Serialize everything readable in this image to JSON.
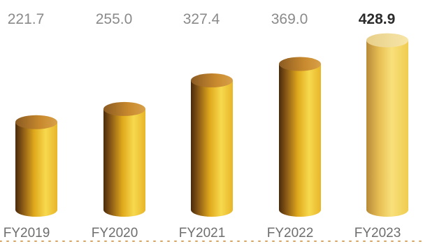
{
  "chart_data": {
    "type": "bar",
    "categories": [
      "FY2019",
      "FY2020",
      "FY2021",
      "FY2022",
      "FY2023"
    ],
    "values": [
      221.7,
      255.0,
      327.4,
      369.0,
      428.9
    ],
    "value_labels": [
      "221.7",
      "255.0",
      "327.4",
      "369.0",
      "428.9"
    ],
    "highlight_index": 4,
    "title": "",
    "xlabel": "",
    "ylabel": "",
    "ylim": [
      0,
      450
    ],
    "grid": false,
    "legend": "none",
    "bar_style": "gold-cylinder",
    "colors": {
      "bar_light": "#f5d54a",
      "bar_mid": "#e0a91c",
      "bar_dark": "#4a2a0c",
      "bar_top": "#c98a2e",
      "baseline": "#d9a35f",
      "value_text": "#8a8a8a",
      "highlight_text": "#2b2b2b",
      "category_text": "#6e6e6e"
    }
  }
}
